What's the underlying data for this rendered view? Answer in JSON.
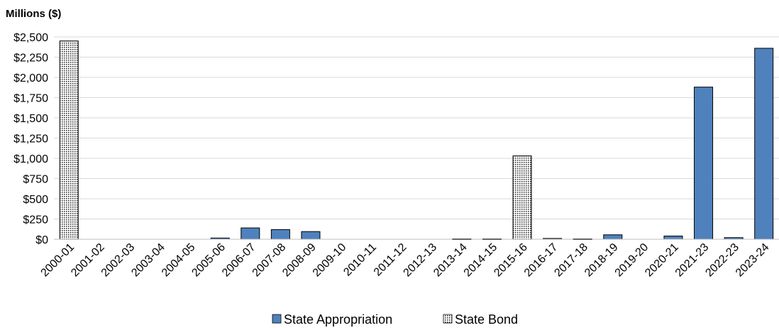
{
  "chart_data": {
    "type": "bar",
    "title": "",
    "ylabel": "Millions ($)",
    "xlabel": "",
    "ylim": [
      0,
      2500
    ],
    "ytick_values": [
      0,
      250,
      500,
      750,
      1000,
      1250,
      1500,
      1750,
      2000,
      2250,
      2500
    ],
    "ytick_labels": [
      "$0",
      "$250",
      "$500",
      "$750",
      "$1,000",
      "$1,250",
      "$1,500",
      "$1,750",
      "$2,000",
      "$2,250",
      "$2,500"
    ],
    "grid": true,
    "legend_position": "bottom",
    "categories": [
      "2000-01",
      "2001-02",
      "2002-03",
      "2003-04",
      "2004-05",
      "2005-06",
      "2006-07",
      "2007-08",
      "2008-09",
      "2009-10",
      "2010-11",
      "2011-12",
      "2012-13",
      "2013-14",
      "2014-15",
      "2015-16",
      "2016-17",
      "2017-18",
      "2018-19",
      "2019-20",
      "2020-21",
      "2021-23",
      "2022-23",
      "2023-24"
    ],
    "series": [
      {
        "name": "State Appropriation",
        "color": "#4f81bd",
        "pattern": "solid",
        "values": [
          0,
          0,
          0,
          0,
          0,
          15,
          140,
          120,
          95,
          0,
          0,
          0,
          0,
          5,
          5,
          0,
          10,
          5,
          55,
          0,
          40,
          1880,
          20,
          2360
        ]
      },
      {
        "name": "State Bond",
        "color": "#ffffff",
        "pattern": "dotted",
        "values": [
          2450,
          0,
          0,
          0,
          0,
          0,
          0,
          0,
          0,
          0,
          0,
          0,
          0,
          0,
          0,
          1030,
          0,
          0,
          0,
          0,
          0,
          0,
          0,
          0
        ]
      }
    ]
  }
}
